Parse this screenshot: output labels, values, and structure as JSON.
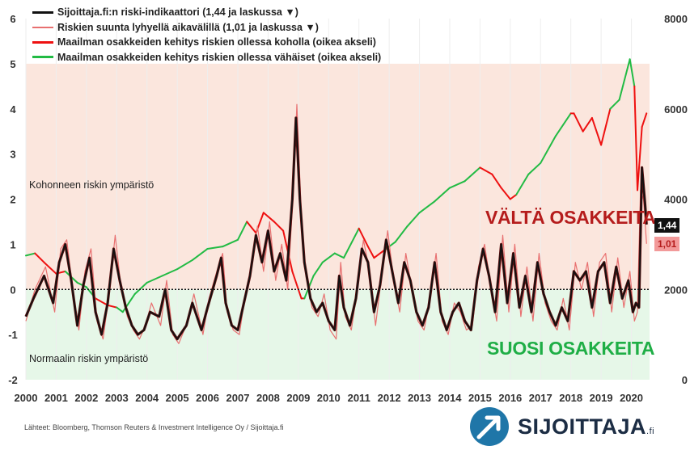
{
  "chart_data": {
    "type": "line",
    "legend": [
      {
        "name": "Sijoittaja.fi:n riski-indikaattori (1,44 ja laskussa ▼)",
        "color": "#111111",
        "axis": "left"
      },
      {
        "name": "Riskien suunta lyhyellä aikavälillä (1,01 ja laskussa ▼)",
        "color": "#e87070",
        "axis": "left"
      },
      {
        "name": "Maailman osakkeiden kehitys riskien ollessa koholla (oikea akseli)",
        "color": "#ee1111",
        "axis": "right"
      },
      {
        "name": "Maailman osakkeiden kehitys riskien ollessa vähäiset (oikea akseli)",
        "color": "#22bb44",
        "axis": "right"
      }
    ],
    "x_ticks": [
      "2000",
      "2001",
      "2002",
      "2003",
      "2004",
      "2005",
      "2006",
      "2007",
      "2008",
      "2009",
      "2010",
      "2011",
      "2012",
      "2013",
      "2014",
      "2015",
      "2016",
      "2017",
      "2018",
      "2019",
      "2020"
    ],
    "xlim": [
      2000,
      2020.6
    ],
    "y_left": {
      "ticks": [
        "-2",
        "-1",
        "0",
        "1",
        "2",
        "3",
        "4",
        "5",
        "6"
      ],
      "lim": [
        -2,
        6
      ]
    },
    "y_right": {
      "ticks": [
        "0",
        "2000",
        "4000",
        "6000",
        "8000"
      ],
      "lim": [
        0,
        8000
      ]
    },
    "zones": {
      "elevated_top": 5,
      "threshold": 0
    },
    "risk_indicator": {
      "x": [
        2000.0,
        2000.25,
        2000.6,
        2000.9,
        2001.1,
        2001.3,
        2001.5,
        2001.7,
        2001.9,
        2002.1,
        2002.3,
        2002.5,
        2002.7,
        2002.9,
        2003.1,
        2003.3,
        2003.5,
        2003.7,
        2003.9,
        2004.1,
        2004.4,
        2004.6,
        2004.8,
        2005.0,
        2005.3,
        2005.5,
        2005.8,
        2006.0,
        2006.3,
        2006.45,
        2006.6,
        2006.8,
        2007.0,
        2007.2,
        2007.4,
        2007.6,
        2007.8,
        2008.0,
        2008.2,
        2008.4,
        2008.6,
        2008.8,
        2008.92,
        2009.05,
        2009.2,
        2009.4,
        2009.6,
        2009.8,
        2010.0,
        2010.2,
        2010.35,
        2010.5,
        2010.7,
        2010.9,
        2011.1,
        2011.3,
        2011.5,
        2011.7,
        2011.9,
        2012.1,
        2012.3,
        2012.5,
        2012.7,
        2012.9,
        2013.1,
        2013.3,
        2013.5,
        2013.7,
        2013.9,
        2014.1,
        2014.3,
        2014.5,
        2014.7,
        2014.9,
        2015.1,
        2015.3,
        2015.5,
        2015.7,
        2015.9,
        2016.1,
        2016.3,
        2016.5,
        2016.7,
        2016.9,
        2017.1,
        2017.3,
        2017.5,
        2017.7,
        2017.9,
        2018.1,
        2018.3,
        2018.5,
        2018.7,
        2018.9,
        2019.1,
        2019.3,
        2019.5,
        2019.7,
        2019.9,
        2020.05,
        2020.15,
        2020.25,
        2020.35,
        2020.45,
        2020.5
      ],
      "y": [
        -0.6,
        -0.2,
        0.3,
        -0.3,
        0.6,
        1.0,
        0.2,
        -0.8,
        0.1,
        0.7,
        -0.5,
        -1.0,
        -0.3,
        0.9,
        0.2,
        -0.4,
        -0.8,
        -1.0,
        -0.9,
        -0.5,
        -0.6,
        0.0,
        -0.9,
        -1.1,
        -0.8,
        -0.3,
        -0.9,
        -0.4,
        0.3,
        0.7,
        -0.3,
        -0.8,
        -0.9,
        -0.3,
        0.3,
        1.2,
        0.6,
        1.3,
        0.4,
        0.8,
        0.2,
        2.0,
        3.8,
        2.0,
        0.6,
        -0.2,
        -0.5,
        -0.3,
        -0.7,
        -0.9,
        0.3,
        -0.4,
        -0.8,
        -0.2,
        0.9,
        0.6,
        -0.5,
        0.1,
        1.1,
        0.4,
        -0.3,
        0.6,
        0.2,
        -0.5,
        -0.8,
        -0.4,
        0.6,
        -0.5,
        -0.9,
        -0.5,
        -0.3,
        -0.7,
        -0.9,
        0.2,
        0.9,
        0.3,
        -0.5,
        1.0,
        -0.3,
        0.8,
        -0.4,
        0.3,
        -0.5,
        0.6,
        -0.1,
        -0.5,
        -0.8,
        -0.4,
        -0.7,
        0.4,
        0.2,
        0.4,
        -0.4,
        0.4,
        0.6,
        -0.3,
        0.5,
        -0.2,
        0.2,
        -0.5,
        -0.3,
        -0.4,
        2.7,
        1.9,
        1.44
      ]
    },
    "risk_direction": {
      "x": [
        2000.0,
        2000.3,
        2000.65,
        2000.95,
        2001.15,
        2001.35,
        2001.55,
        2001.75,
        2001.95,
        2002.15,
        2002.35,
        2002.55,
        2002.75,
        2002.95,
        2003.15,
        2003.35,
        2003.55,
        2003.75,
        2003.95,
        2004.15,
        2004.45,
        2004.65,
        2004.85,
        2005.05,
        2005.35,
        2005.55,
        2005.85,
        2006.05,
        2006.35,
        2006.5,
        2006.65,
        2006.85,
        2007.05,
        2007.25,
        2007.45,
        2007.65,
        2007.85,
        2008.05,
        2008.25,
        2008.45,
        2008.65,
        2008.85,
        2008.95,
        2009.1,
        2009.25,
        2009.45,
        2009.65,
        2009.85,
        2010.05,
        2010.25,
        2010.4,
        2010.55,
        2010.75,
        2010.95,
        2011.15,
        2011.35,
        2011.55,
        2011.75,
        2011.95,
        2012.15,
        2012.35,
        2012.55,
        2012.75,
        2012.95,
        2013.15,
        2013.35,
        2013.55,
        2013.75,
        2013.95,
        2014.15,
        2014.35,
        2014.55,
        2014.75,
        2014.95,
        2015.15,
        2015.35,
        2015.55,
        2015.75,
        2015.95,
        2016.15,
        2016.35,
        2016.55,
        2016.75,
        2016.95,
        2017.15,
        2017.35,
        2017.55,
        2017.75,
        2017.95,
        2018.15,
        2018.35,
        2018.55,
        2018.75,
        2018.95,
        2019.15,
        2019.35,
        2019.55,
        2019.75,
        2019.95,
        2020.1,
        2020.2,
        2020.3,
        2020.4,
        2020.5
      ],
      "y": [
        -0.7,
        0.0,
        0.5,
        -0.5,
        0.9,
        1.1,
        0.0,
        -0.9,
        0.4,
        0.9,
        -0.7,
        -1.1,
        -0.1,
        1.2,
        0.0,
        -0.6,
        -0.9,
        -1.1,
        -0.8,
        -0.3,
        -0.8,
        0.2,
        -1.0,
        -1.2,
        -0.7,
        -0.1,
        -1.0,
        -0.2,
        0.5,
        0.8,
        -0.5,
        -0.9,
        -1.0,
        -0.1,
        0.5,
        1.4,
        0.4,
        1.5,
        0.2,
        1.0,
        0.0,
        2.4,
        4.1,
        1.6,
        0.3,
        -0.4,
        -0.6,
        -0.1,
        -0.9,
        -1.1,
        0.6,
        -0.6,
        -0.9,
        0.0,
        1.1,
        0.4,
        -0.8,
        0.3,
        1.3,
        0.2,
        -0.5,
        0.8,
        0.0,
        -0.7,
        -0.9,
        -0.2,
        0.8,
        -0.7,
        -1.0,
        -0.3,
        -0.5,
        -0.9,
        -0.8,
        0.5,
        1.0,
        0.1,
        -0.7,
        1.2,
        -0.5,
        1.0,
        -0.6,
        0.5,
        -0.7,
        0.8,
        -0.3,
        -0.7,
        -0.9,
        -0.2,
        -0.9,
        0.6,
        0.0,
        0.6,
        -0.6,
        0.6,
        0.8,
        -0.5,
        0.7,
        -0.4,
        0.4,
        -0.7,
        -0.5,
        2.2,
        2.0,
        1.01
      ]
    },
    "stocks": {
      "x": [
        2000.0,
        2000.3,
        2000.6,
        2001.0,
        2001.3,
        2001.7,
        2002.0,
        2002.3,
        2002.7,
        2003.0,
        2003.2,
        2003.6,
        2004.0,
        2004.5,
        2005.0,
        2005.5,
        2006.0,
        2006.5,
        2007.0,
        2007.3,
        2007.6,
        2007.85,
        2008.2,
        2008.5,
        2008.8,
        2009.1,
        2009.2,
        2009.5,
        2009.8,
        2010.2,
        2010.5,
        2011.0,
        2011.3,
        2011.5,
        2011.9,
        2012.2,
        2012.6,
        2013.0,
        2013.5,
        2014.0,
        2014.5,
        2015.0,
        2015.4,
        2015.7,
        2016.0,
        2016.2,
        2016.6,
        2017.0,
        2017.5,
        2018.0,
        2018.1,
        2018.4,
        2018.7,
        2019.0,
        2019.3,
        2019.6,
        2019.95,
        2020.1,
        2020.2,
        2020.35,
        2020.5
      ],
      "risk": [
        0,
        0,
        1,
        1,
        1,
        0,
        0,
        0,
        1,
        1,
        0,
        0,
        0,
        0,
        0,
        0,
        0,
        0,
        0,
        0,
        1,
        1,
        1,
        1,
        1,
        1,
        1,
        0,
        0,
        0,
        0,
        0,
        1,
        1,
        1,
        0,
        0,
        0,
        0,
        0,
        0,
        0,
        1,
        1,
        1,
        1,
        0,
        0,
        0,
        0,
        1,
        1,
        1,
        1,
        1,
        0,
        0,
        0,
        1,
        1,
        1
      ],
      "values": [
        2750,
        2800,
        2600,
        2350,
        2400,
        2150,
        2050,
        1800,
        1650,
        1600,
        1500,
        1900,
        2150,
        2300,
        2450,
        2650,
        2900,
        2950,
        3100,
        3500,
        3250,
        3700,
        3500,
        3300,
        2400,
        1800,
        1800,
        2300,
        2600,
        2800,
        2700,
        3350,
        2950,
        2700,
        2900,
        3050,
        3400,
        3700,
        3950,
        4250,
        4400,
        4700,
        4550,
        4250,
        4000,
        4100,
        4550,
        4800,
        5400,
        5900,
        5900,
        5500,
        5800,
        5200,
        6000,
        6200,
        7100,
        6500,
        4200,
        5600,
        5900
      ]
    },
    "labels": {
      "elevated_zone": "Kohonneen riskin ympäristö",
      "normal_zone": "Normaalin riskin ympäristö",
      "avoid": "VÄLTÄ OSAKKEITA",
      "favor": "SUOSI OSAKKEITA",
      "current_risk": "1,44",
      "current_direction": "1,01"
    },
    "colors": {
      "elevated_bg": "#fbe6dd",
      "normal_bg": "#e6f7e8",
      "avoid_text": "#b51c1c",
      "favor_text": "#1fae46",
      "badge_black": "#111111",
      "badge_pink": "#f29a9a"
    }
  },
  "source": "Lähteet: Bloomberg, Thomson Reuters & Investment Intelligence Oy / Sijoittaja.fi",
  "logo": {
    "name": "SIJOITTAJA",
    "suffix": ".fi",
    "icon": "arrow-circle-icon"
  }
}
